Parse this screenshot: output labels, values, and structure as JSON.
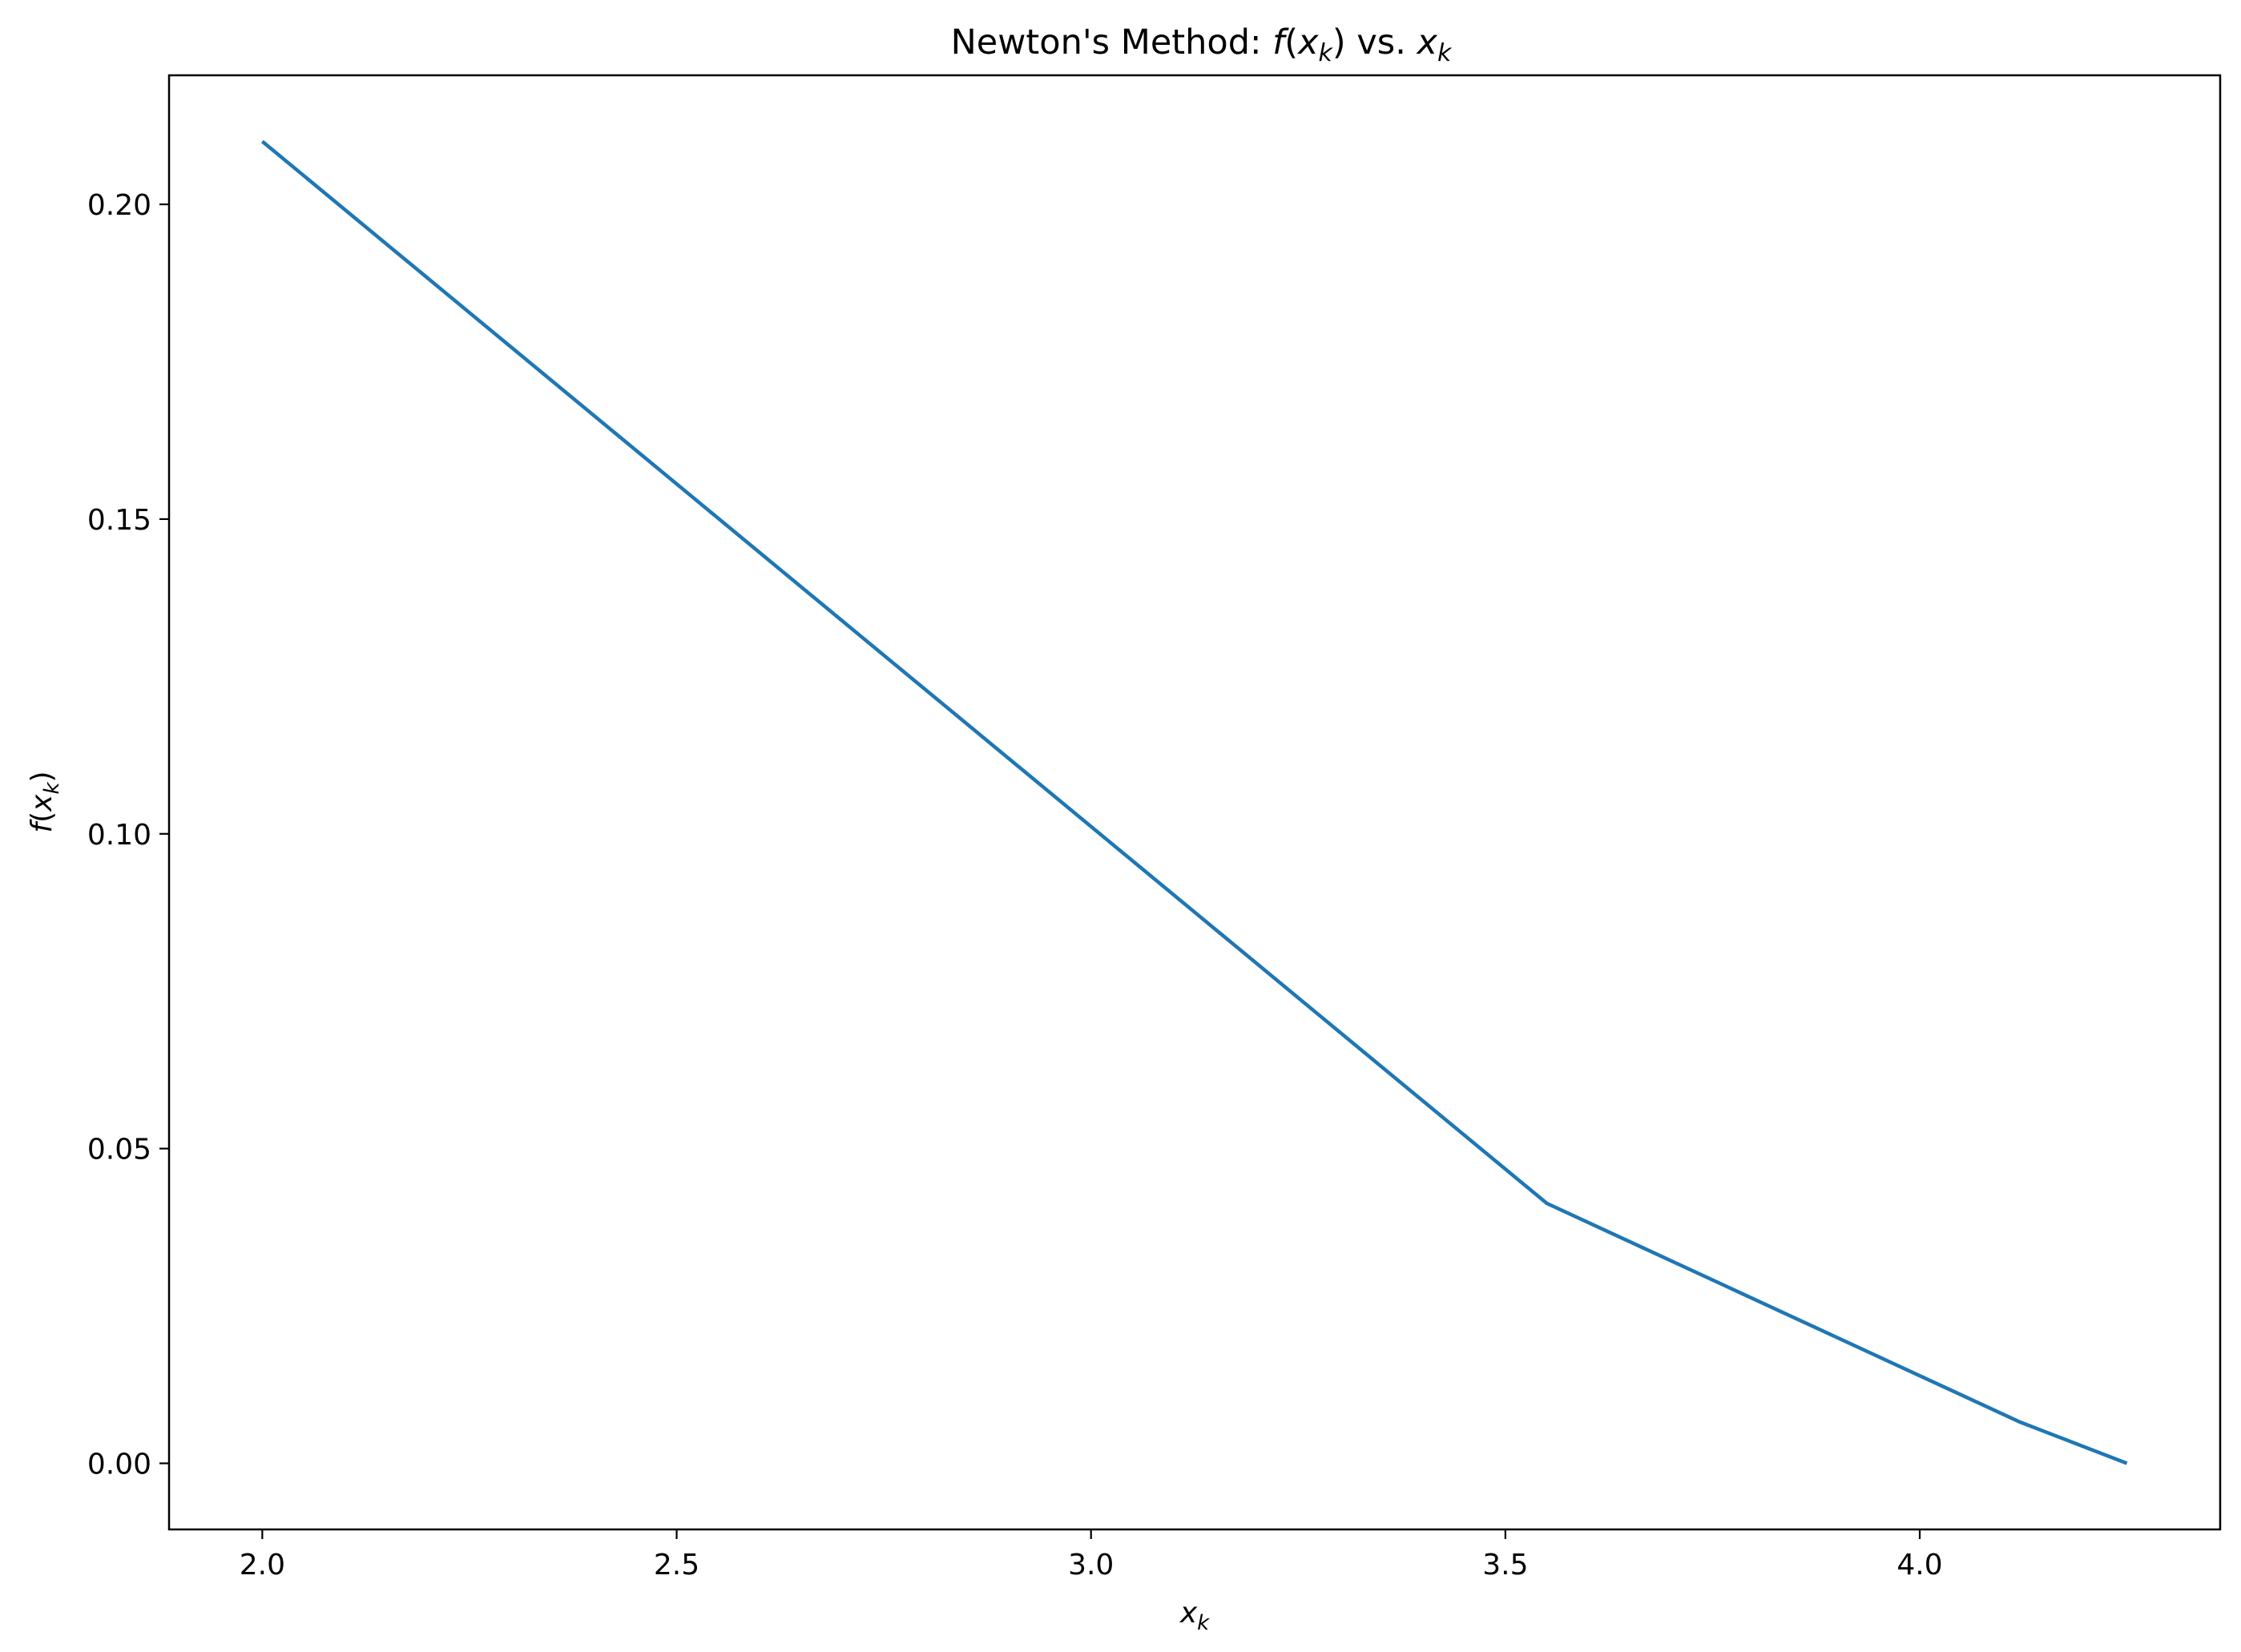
{
  "chart_data": {
    "type": "line",
    "title": {
      "prefix": "Newton's Method: ",
      "f": "f",
      "open": "(",
      "x": "x",
      "sub": "k",
      "close": ")",
      "mid": " vs. ",
      "x2": "x",
      "sub2": "k"
    },
    "xlabel": {
      "x": "x",
      "sub": "k"
    },
    "ylabel": {
      "f": "f",
      "open": "(",
      "x": "x",
      "sub": "k",
      "close": ")"
    },
    "x": [
      2.0,
      3.55,
      4.12,
      4.25
    ],
    "y": [
      0.21,
      0.0413,
      0.0066,
      0.0
    ],
    "xlim": [
      1.8875,
      4.3625
    ],
    "ylim": [
      -0.0105,
      0.2205
    ],
    "xticks": [
      2.0,
      2.5,
      3.0,
      3.5,
      4.0
    ],
    "xtick_labels": [
      "2.0",
      "2.5",
      "3.0",
      "3.5",
      "4.0"
    ],
    "yticks": [
      0.0,
      0.05,
      0.1,
      0.15,
      0.2
    ],
    "ytick_labels": [
      "0.00",
      "0.05",
      "0.10",
      "0.15",
      "0.20"
    ],
    "grid": false,
    "line_color": "#1f77b4"
  }
}
